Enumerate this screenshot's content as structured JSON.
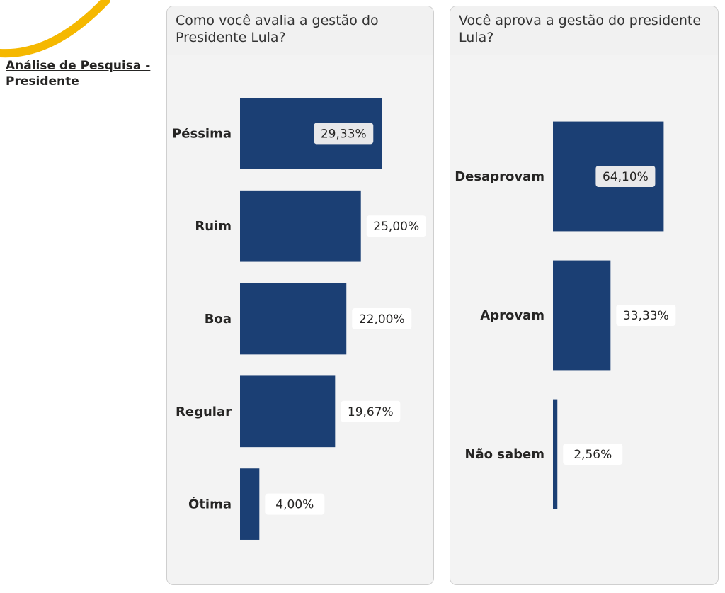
{
  "report_link": "Análise de Pesquisa - Presidente",
  "colors": {
    "bar": "#1b3f74",
    "accent": "#f5b800",
    "label_box": "#ffffff",
    "label_box_inside": "#e8e8ea"
  },
  "chart_data": [
    {
      "type": "bar",
      "orientation": "horizontal",
      "title": "Como você avalia a gestão do Presidente Lula?",
      "categories": [
        "Péssima",
        "Ruim",
        "Boa",
        "Regular",
        "Ótima"
      ],
      "values": [
        29.33,
        25.0,
        22.0,
        19.67,
        4.0
      ],
      "value_labels": [
        "29,33%",
        "25,00%",
        "22,00%",
        "19,67%",
        "4,00%"
      ],
      "xlim": [
        0,
        35
      ],
      "grid": false,
      "legend": "none"
    },
    {
      "type": "bar",
      "orientation": "horizontal",
      "title": "Você aprova a gestão do presidente Lula?",
      "categories": [
        "Desaprovam",
        "Aprovam",
        "Não sabem"
      ],
      "values": [
        64.1,
        33.33,
        2.56
      ],
      "value_labels": [
        "64,10%",
        "33,33%",
        "2,56%"
      ],
      "xlim": [
        0,
        75
      ],
      "grid": false,
      "legend": "none"
    }
  ]
}
